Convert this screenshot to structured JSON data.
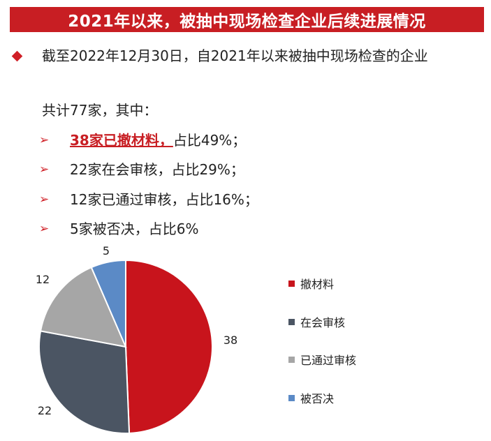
{
  "title": "2021年以来，被抽中现场检查企业后续进展情况",
  "intro": "截至2022年12月30日，自2021年以来被抽中现场检查的企业",
  "total": "共计77家，其中：",
  "bullets": [
    {
      "highlight": "38家已撤材料，",
      "rest": "占比49%；"
    },
    {
      "highlight": "",
      "rest": "22家在会审核，占比29%；"
    },
    {
      "highlight": "",
      "rest": "12家已通过审核，占比16%；"
    },
    {
      "highlight": "",
      "rest": "5家被否决，占比6%"
    }
  ],
  "colors": {
    "accent": "#c81e23"
  },
  "chart_data": {
    "type": "pie",
    "categories": [
      "撤材料",
      "在会审核",
      "已通过审核",
      "被否决"
    ],
    "values": [
      38,
      22,
      12,
      5
    ],
    "labels": [
      "38",
      "22",
      "12",
      "5"
    ],
    "colors": [
      "#c8141c",
      "#4b5563",
      "#a6a6a6",
      "#5b8ac6"
    ],
    "legend_position": "right"
  }
}
